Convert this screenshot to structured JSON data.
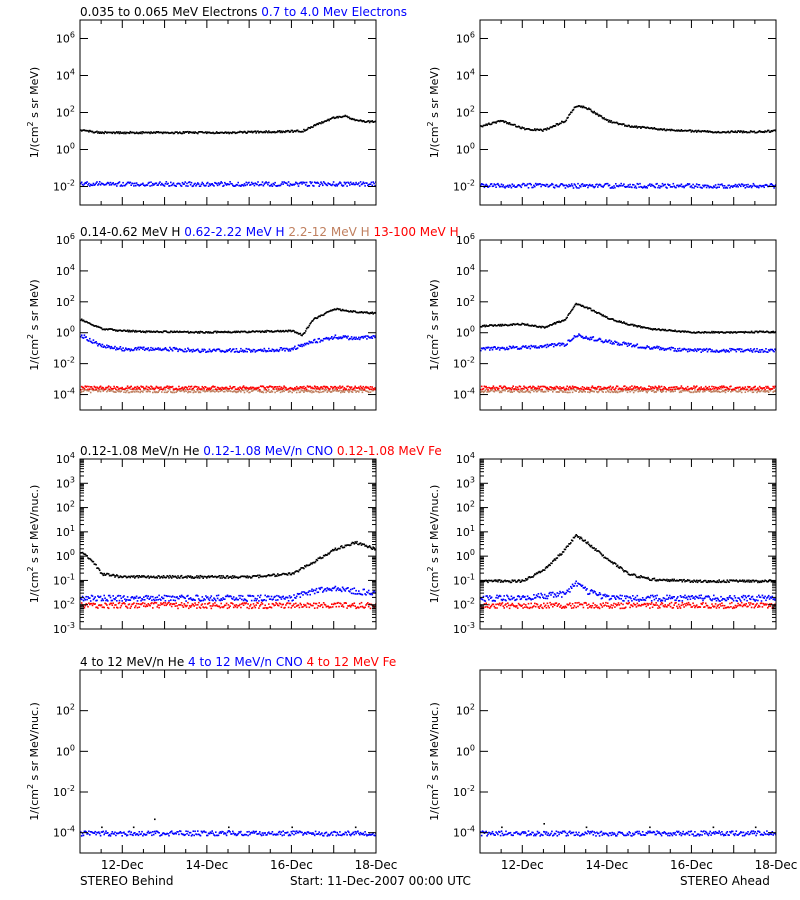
{
  "colors": {
    "black": "#000000",
    "blue": "#0000ff",
    "tan": "#c08060",
    "red": "#ff0000",
    "gray": "#a0a0a0"
  },
  "footer": {
    "left": "STEREO Behind",
    "center": "Start: 11-Dec-2007 00:00 UTC",
    "right": "STEREO Ahead"
  },
  "x_axis": {
    "tick_days": [
      12,
      14,
      16,
      18
    ],
    "tick_labels": [
      "12-Dec",
      "14-Dec",
      "16-Dec",
      "18-Dec"
    ],
    "start_day": 11,
    "end_day": 18
  },
  "rows": [
    {
      "id": "electrons",
      "ylabel": "1/(cm2 s sr MeV)",
      "ylabel_main": "1/(cm",
      "ylabel_sup": "2",
      "ylabel_rest": " s sr MeV)",
      "log_range": [
        -3,
        7
      ],
      "tick_exps": [
        -2,
        0,
        2,
        4,
        6
      ],
      "minor_ticks": false,
      "legend": [
        {
          "text": "0.035 to 0.065 MeV Electrons",
          "color": "#000000"
        },
        {
          "text": "0.7 to 4.0 Mev Electrons",
          "color": "#0000ff"
        }
      ]
    },
    {
      "id": "protons",
      "ylabel": "1/(cm2 s sr MeV)",
      "ylabel_main": "1/(cm",
      "ylabel_sup": "2",
      "ylabel_rest": " s sr MeV)",
      "log_range": [
        -5,
        6
      ],
      "tick_exps": [
        -4,
        -2,
        0,
        2,
        4,
        6
      ],
      "minor_ticks": false,
      "legend": [
        {
          "text": "0.14-0.62 MeV H",
          "color": "#000000"
        },
        {
          "text": "0.62-2.22 MeV H",
          "color": "#0000ff"
        },
        {
          "text": "2.2-12 MeV H",
          "color": "#c08060"
        },
        {
          "text": "13-100 MeV H",
          "color": "#ff0000"
        }
      ]
    },
    {
      "id": "heavy_low",
      "ylabel": "1/(cm2 s sr MeV/nuc.)",
      "ylabel_main": "1/(cm",
      "ylabel_sup": "2",
      "ylabel_rest": " s sr MeV/nuc.)",
      "log_range": [
        -3,
        4
      ],
      "tick_exps": [
        -3,
        -2,
        -1,
        0,
        1,
        2,
        3,
        4
      ],
      "minor_ticks": true,
      "legend": [
        {
          "text": "0.12-1.08 MeV/n He",
          "color": "#000000"
        },
        {
          "text": "0.12-1.08 MeV/n CNO",
          "color": "#0000ff"
        },
        {
          "text": "0.12-1.08 MeV Fe",
          "color": "#ff0000"
        }
      ]
    },
    {
      "id": "heavy_high",
      "ylabel": "1/(cm2 s sr MeV/nuc.)",
      "ylabel_main": "1/(cm",
      "ylabel_sup": "2",
      "ylabel_rest": " s sr MeV/nuc.)",
      "log_range": [
        -5,
        4
      ],
      "tick_exps": [
        -4,
        -2,
        0,
        2
      ],
      "minor_ticks": false,
      "legend": [
        {
          "text": "4 to 12 MeV/n He",
          "color": "#000000"
        },
        {
          "text": "4 to 12 MeV/n CNO",
          "color": "#0000ff"
        },
        {
          "text": "4 to 12 MeV Fe",
          "color": "#ff0000"
        }
      ]
    }
  ],
  "chart_data": [
    {
      "type": "scatter",
      "title": "0.035 to 0.065 MeV Electrons / 0.7 to 4.0 Mev Electrons",
      "panel": "STEREO Behind",
      "xlabel": "",
      "ylabel": "1/(cm2 s sr MeV)",
      "yscale": "log",
      "ylim": [
        0.001,
        10000000
      ],
      "xlim": [
        "11-Dec-2007",
        "18-Dec-2007"
      ],
      "data_gap": [
        "13-Dec-2007 00:00",
        "13-Dec-2007 18:00"
      ],
      "series": [
        {
          "name": "0.035 to 0.065 MeV Electrons",
          "color": "#000000",
          "x": [
            "11-Dec 00:00",
            "11-Dec 12:00",
            "12-Dec 00:00",
            "12-Dec 12:00",
            "13-Dec 00:00",
            "13-Dec 18:00",
            "14-Dec 12:00",
            "15-Dec 12:00",
            "16-Dec 06:00",
            "16-Dec 12:00",
            "16-Dec 18:00",
            "17-Dec 00:00",
            "17-Dec 06:00",
            "17-Dec 12:00",
            "17-Dec 18:00",
            "18-Dec 00:00"
          ],
          "y": [
            12,
            9,
            9,
            9,
            9,
            9,
            9,
            10,
            11,
            20,
            35,
            60,
            70,
            45,
            35,
            35
          ]
        },
        {
          "name": "0.7 to 4.0 Mev Electrons",
          "color": "#0000ff",
          "x": [
            "11-Dec 00:00",
            "12-Dec 00:00",
            "13-Dec 00:00",
            "13-Dec 18:00",
            "15-Dec 00:00",
            "16-Dec 00:00",
            "17-Dec 00:00",
            "18-Dec 00:00"
          ],
          "y": [
            0.015,
            0.015,
            0.015,
            0.015,
            0.015,
            0.015,
            0.015,
            0.015
          ]
        }
      ]
    },
    {
      "type": "scatter",
      "title": "0.035 to 0.065 MeV Electrons / 0.7 to 4.0 Mev Electrons",
      "panel": "STEREO Ahead",
      "xlabel": "",
      "ylabel": "1/(cm2 s sr MeV)",
      "yscale": "log",
      "ylim": [
        0.001,
        10000000
      ],
      "xlim": [
        "11-Dec-2007",
        "18-Dec-2007"
      ],
      "series": [
        {
          "name": "0.035 to 0.065 MeV Electrons",
          "color": "#000000",
          "x": [
            "11-Dec 00:00",
            "11-Dec 12:00",
            "12-Dec 00:00",
            "12-Dec 12:00",
            "13-Dec 00:00",
            "13-Dec 06:00",
            "13-Dec 12:00",
            "14-Dec 00:00",
            "14-Dec 12:00",
            "15-Dec 12:00",
            "16-Dec 12:00",
            "17-Dec 12:00",
            "18-Dec 00:00"
          ],
          "y": [
            20,
            40,
            15,
            12,
            40,
            250,
            200,
            40,
            20,
            12,
            10,
            10,
            11
          ]
        },
        {
          "name": "0.7 to 4.0 Mev Electrons",
          "color": "#0000ff",
          "x": [
            "11-Dec 00:00",
            "12-Dec 00:00",
            "13-Dec 00:00",
            "14-Dec 00:00",
            "15-Dec 00:00",
            "16-Dec 00:00",
            "17-Dec 00:00",
            "18-Dec 00:00"
          ],
          "y": [
            0.012,
            0.012,
            0.012,
            0.012,
            0.012,
            0.012,
            0.012,
            0.012
          ]
        }
      ]
    },
    {
      "type": "scatter",
      "title": "0.14-0.62 MeV H / 0.62-2.22 MeV H / 2.2-12 MeV H / 13-100 MeV H",
      "panel": "STEREO Behind",
      "xlabel": "",
      "ylabel": "1/(cm2 s sr MeV)",
      "yscale": "log",
      "ylim": [
        1e-05,
        1000000
      ],
      "xlim": [
        "11-Dec-2007",
        "18-Dec-2007"
      ],
      "data_gap": [
        "13-Dec-2007 00:00",
        "13-Dec-2007 18:00"
      ],
      "series": [
        {
          "name": "0.14-0.62 MeV H",
          "color": "#000000",
          "x": [
            "11-Dec 00:00",
            "11-Dec 12:00",
            "12-Dec 00:00",
            "12-Dec 12:00",
            "13-Dec 00:00",
            "13-Dec 18:00",
            "15-Dec 00:00",
            "16-Dec 00:00",
            "16-Dec 06:00",
            "16-Dec 12:00",
            "17-Dec 00:00",
            "17-Dec 12:00",
            "18-Dec 00:00"
          ],
          "y": [
            8,
            2,
            1.5,
            1.3,
            1.3,
            1.2,
            1.3,
            1.5,
            0.8,
            8,
            40,
            25,
            20
          ]
        },
        {
          "name": "0.62-2.22 MeV H",
          "color": "#0000ff",
          "x": [
            "11-Dec 00:00",
            "11-Dec 12:00",
            "12-Dec 00:00",
            "13-Dec 00:00",
            "13-Dec 18:00",
            "15-Dec 00:00",
            "16-Dec 00:00",
            "16-Dec 12:00",
            "17-Dec 00:00",
            "17-Dec 12:00",
            "18-Dec 00:00"
          ],
          "y": [
            0.8,
            0.15,
            0.1,
            0.1,
            0.08,
            0.08,
            0.1,
            0.3,
            0.6,
            0.5,
            0.6
          ]
        },
        {
          "name": "2.2-12 MeV H",
          "color": "#c08060",
          "x": [
            "11-Dec 00:00",
            "12-Dec 00:00",
            "13-Dec 00:00",
            "13-Dec 18:00",
            "15-Dec 00:00",
            "16-Dec 00:00",
            "17-Dec 00:00",
            "18-Dec 00:00"
          ],
          "y": [
            0.0002,
            0.0002,
            0.0002,
            0.0002,
            0.0002,
            0.0002,
            0.0002,
            0.0002
          ]
        },
        {
          "name": "13-100 MeV H",
          "color": "#ff0000",
          "x": [
            "11-Dec 00:00",
            "12-Dec 00:00",
            "13-Dec 00:00",
            "13-Dec 18:00",
            "15-Dec 00:00",
            "16-Dec 00:00",
            "17-Dec 00:00",
            "18-Dec 00:00"
          ],
          "y": [
            0.0003,
            0.0003,
            0.0003,
            0.0003,
            0.0003,
            0.0003,
            0.0003,
            0.0003
          ]
        }
      ]
    },
    {
      "type": "scatter",
      "title": "0.14-0.62 MeV H / 0.62-2.22 MeV H / 2.2-12 MeV H / 13-100 MeV H",
      "panel": "STEREO Ahead",
      "xlabel": "",
      "ylabel": "1/(cm2 s sr MeV)",
      "yscale": "log",
      "ylim": [
        1e-05,
        1000000
      ],
      "xlim": [
        "11-Dec-2007",
        "18-Dec-2007"
      ],
      "series": [
        {
          "name": "0.14-0.62 MeV H",
          "color": "#000000",
          "x": [
            "11-Dec 00:00",
            "12-Dec 00:00",
            "12-Dec 12:00",
            "13-Dec 00:00",
            "13-Dec 06:00",
            "13-Dec 12:00",
            "14-Dec 00:00",
            "14-Dec 12:00",
            "15-Dec 00:00",
            "16-Dec 00:00",
            "17-Dec 00:00",
            "18-Dec 00:00"
          ],
          "y": [
            3,
            4,
            2.5,
            8,
            80,
            50,
            10,
            4,
            2,
            1.2,
            1.2,
            1.3
          ]
        },
        {
          "name": "0.62-2.22 MeV H",
          "color": "#0000ff",
          "x": [
            "11-Dec 00:00",
            "12-Dec 00:00",
            "12-Dec 12:00",
            "13-Dec 00:00",
            "13-Dec 06:00",
            "14-Dec 00:00",
            "15-Dec 00:00",
            "16-Dec 00:00",
            "17-Dec 00:00",
            "18-Dec 00:00"
          ],
          "y": [
            0.1,
            0.12,
            0.15,
            0.2,
            0.8,
            0.3,
            0.12,
            0.08,
            0.08,
            0.08
          ]
        },
        {
          "name": "2.2-12 MeV H",
          "color": "#c08060",
          "x": [
            "11-Dec 00:00",
            "13-Dec 00:00",
            "15-Dec 00:00",
            "18-Dec 00:00"
          ],
          "y": [
            0.0002,
            0.0002,
            0.0002,
            0.0002
          ]
        },
        {
          "name": "13-100 MeV H",
          "color": "#ff0000",
          "x": [
            "11-Dec 00:00",
            "13-Dec 00:00",
            "15-Dec 00:00",
            "18-Dec 00:00"
          ],
          "y": [
            0.0003,
            0.0003,
            0.0003,
            0.0003
          ]
        }
      ]
    },
    {
      "type": "scatter",
      "title": "0.12-1.08 MeV/n He / 0.12-1.08 MeV/n CNO / 0.12-1.08 MeV Fe",
      "panel": "STEREO Behind",
      "xlabel": "",
      "ylabel": "1/(cm2 s sr MeV/nuc.)",
      "yscale": "log",
      "ylim": [
        0.001,
        10000
      ],
      "xlim": [
        "11-Dec-2007",
        "18-Dec-2007"
      ],
      "data_gap": [
        "13-Dec-2007 00:00",
        "13-Dec-2007 18:00"
      ],
      "series": [
        {
          "name": "0.12-1.08 MeV/n He",
          "color": "#000000",
          "x": [
            "11-Dec 00:00",
            "11-Dec 06:00",
            "11-Dec 12:00",
            "12-Dec 00:00",
            "13-Dec 00:00",
            "13-Dec 18:00",
            "15-Dec 00:00",
            "16-Dec 00:00",
            "16-Dec 12:00",
            "17-Dec 00:00",
            "17-Dec 12:00",
            "18-Dec 00:00"
          ],
          "y": [
            1.5,
            0.8,
            0.2,
            0.15,
            0.15,
            0.15,
            0.15,
            0.2,
            0.6,
            2,
            4,
            2
          ]
        },
        {
          "name": "0.12-1.08 MeV/n CNO",
          "color": "#0000ff",
          "x": [
            "11-Dec 00:00",
            "12-Dec 00:00",
            "13-Dec 00:00",
            "13-Dec 18:00",
            "15-Dec 00:00",
            "16-Dec 00:00",
            "16-Dec 12:00",
            "17-Dec 00:00",
            "18-Dec 00:00"
          ],
          "y": [
            0.02,
            0.02,
            0.02,
            0.02,
            0.02,
            0.02,
            0.04,
            0.05,
            0.03
          ]
        },
        {
          "name": "0.12-1.08 MeV Fe",
          "color": "#ff0000",
          "x": [
            "11-Dec 00:00",
            "12-Dec 00:00",
            "13-Dec 00:00",
            "13-Dec 18:00",
            "15-Dec 00:00",
            "16-Dec 00:00",
            "17-Dec 00:00",
            "18-Dec 00:00"
          ],
          "y": [
            0.01,
            0.01,
            0.01,
            0.01,
            0.01,
            0.01,
            0.01,
            0.01
          ]
        }
      ]
    },
    {
      "type": "scatter",
      "title": "0.12-1.08 MeV/n He / 0.12-1.08 MeV/n CNO / 0.12-1.08 MeV Fe",
      "panel": "STEREO Ahead",
      "xlabel": "",
      "ylabel": "1/(cm2 s sr MeV/nuc.)",
      "yscale": "log",
      "ylim": [
        0.001,
        10000
      ],
      "xlim": [
        "11-Dec-2007",
        "18-Dec-2007"
      ],
      "series": [
        {
          "name": "0.12-1.08 MeV/n He",
          "color": "#000000",
          "x": [
            "11-Dec 00:00",
            "12-Dec 00:00",
            "12-Dec 12:00",
            "13-Dec 00:00",
            "13-Dec 06:00",
            "13-Dec 12:00",
            "14-Dec 00:00",
            "14-Dec 12:00",
            "15-Dec 00:00",
            "16-Dec 00:00",
            "17-Dec 00:00",
            "18-Dec 00:00"
          ],
          "y": [
            0.1,
            0.1,
            0.3,
            2,
            8,
            4,
            0.8,
            0.2,
            0.12,
            0.1,
            0.1,
            0.1
          ]
        },
        {
          "name": "0.12-1.08 MeV/n CNO",
          "color": "#0000ff",
          "x": [
            "11-Dec 00:00",
            "12-Dec 00:00",
            "13-Dec 00:00",
            "13-Dec 06:00",
            "13-Dec 12:00",
            "14-Dec 00:00",
            "15-Dec 00:00",
            "16-Dec 00:00",
            "17-Dec 00:00",
            "18-Dec 00:00"
          ],
          "y": [
            0.02,
            0.02,
            0.03,
            0.08,
            0.04,
            0.02,
            0.02,
            0.02,
            0.02,
            0.02
          ]
        },
        {
          "name": "0.12-1.08 MeV Fe",
          "color": "#ff0000",
          "x": [
            "11-Dec 00:00",
            "13-Dec 00:00",
            "15-Dec 00:00",
            "18-Dec 00:00"
          ],
          "y": [
            0.01,
            0.01,
            0.01,
            0.01
          ]
        }
      ]
    },
    {
      "type": "scatter",
      "title": "4 to 12 MeV/n He / 4 to 12 MeV/n CNO / 4 to 12 MeV Fe",
      "panel": "STEREO Behind",
      "xlabel": "",
      "ylabel": "1/(cm2 s sr MeV/nuc.)",
      "yscale": "log",
      "ylim": [
        1e-05,
        10000
      ],
      "xlim": [
        "11-Dec-2007",
        "18-Dec-2007"
      ],
      "data_gap": [
        "13-Dec-2007 00:00",
        "13-Dec-2007 18:00"
      ],
      "series": [
        {
          "name": "4 to 12 MeV/n He",
          "color": "#000000",
          "x": [
            "11-Dec 12:00",
            "12-Dec 06:00",
            "12-Dec 18:00",
            "14-Dec 12:00",
            "16-Dec 00:00",
            "17-Dec 12:00"
          ],
          "y": [
            0.0002,
            0.0002,
            0.0005,
            0.0002,
            0.0002,
            0.0002
          ]
        },
        {
          "name": "4 to 12 MeV/n CNO",
          "color": "#0000ff",
          "x": [
            "11-Dec 00:00",
            "12-Dec 00:00",
            "13-Dec 00:00",
            "13-Dec 18:00",
            "15-Dec 00:00",
            "16-Dec 00:00",
            "17-Dec 00:00",
            "18-Dec 00:00"
          ],
          "y": [
            0.0001,
            0.0001,
            0.0001,
            0.0001,
            0.0001,
            0.0001,
            0.0001,
            0.0001
          ]
        }
      ]
    },
    {
      "type": "scatter",
      "title": "4 to 12 MeV/n He / 4 to 12 MeV/n CNO / 4 to 12 MeV Fe",
      "panel": "STEREO Ahead",
      "xlabel": "",
      "ylabel": "1/(cm2 s sr MeV/nuc.)",
      "yscale": "log",
      "ylim": [
        1e-05,
        10000
      ],
      "xlim": [
        "11-Dec-2007",
        "18-Dec-2007"
      ],
      "series": [
        {
          "name": "4 to 12 MeV/n He",
          "color": "#000000",
          "x": [
            "11-Dec 12:00",
            "12-Dec 12:00",
            "13-Dec 12:00",
            "15-Dec 00:00",
            "16-Dec 12:00",
            "17-Dec 12:00"
          ],
          "y": [
            0.0002,
            0.0003,
            0.0002,
            0.0002,
            0.0002,
            0.0002
          ]
        },
        {
          "name": "4 to 12 MeV/n CNO",
          "color": "#0000ff",
          "x": [
            "11-Dec 00:00",
            "12-Dec 00:00",
            "13-Dec 00:00",
            "14-Dec 00:00",
            "15-Dec 00:00",
            "16-Dec 00:00",
            "17-Dec 00:00",
            "18-Dec 00:00"
          ],
          "y": [
            0.0001,
            0.0001,
            0.0001,
            0.0001,
            0.0001,
            0.0001,
            0.0001,
            0.0001
          ]
        }
      ]
    }
  ]
}
